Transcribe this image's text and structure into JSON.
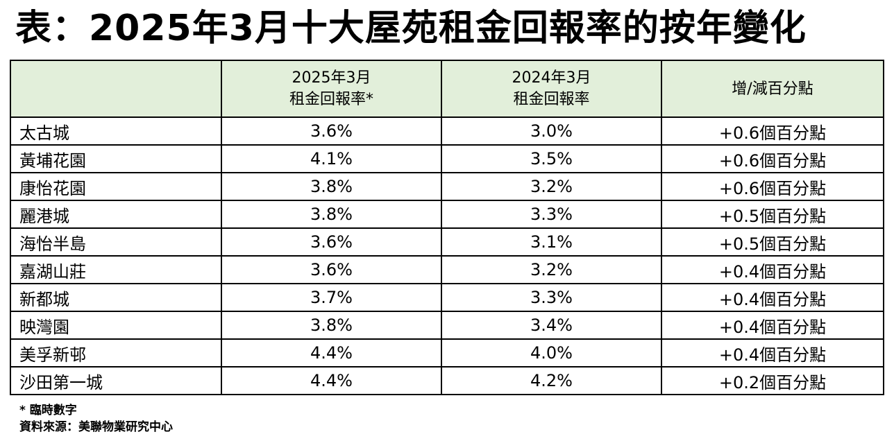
{
  "title": "表：2025年3月十大屋苑租金回報率的按年變化",
  "table": {
    "headers": [
      {
        "line1": "",
        "line2": ""
      },
      {
        "line1": "2025年3月",
        "line2": "租金回報率*"
      },
      {
        "line1": "2024年3月",
        "line2": "租金回報率"
      },
      {
        "line1": "增/減百分點",
        "line2": ""
      }
    ],
    "rows": [
      {
        "estate": "太古城",
        "yield_2025": "3.6%",
        "yield_2024": "3.0%",
        "change": "+0.6個百分點"
      },
      {
        "estate": "黃埔花園",
        "yield_2025": "4.1%",
        "yield_2024": "3.5%",
        "change": "+0.6個百分點"
      },
      {
        "estate": "康怡花園",
        "yield_2025": "3.8%",
        "yield_2024": "3.2%",
        "change": "+0.6個百分點"
      },
      {
        "estate": "麗港城",
        "yield_2025": "3.8%",
        "yield_2024": "3.3%",
        "change": "+0.5個百分點"
      },
      {
        "estate": "海怡半島",
        "yield_2025": "3.6%",
        "yield_2024": "3.1%",
        "change": "+0.5個百分點"
      },
      {
        "estate": "嘉湖山莊",
        "yield_2025": "3.6%",
        "yield_2024": "3.2%",
        "change": "+0.4個百分點"
      },
      {
        "estate": "新都城",
        "yield_2025": "3.7%",
        "yield_2024": "3.3%",
        "change": "+0.4個百分點"
      },
      {
        "estate": "映灣園",
        "yield_2025": "3.8%",
        "yield_2024": "3.4%",
        "change": "+0.4個百分點"
      },
      {
        "estate": "美孚新邨",
        "yield_2025": "4.4%",
        "yield_2024": "4.0%",
        "change": "+0.4個百分點"
      },
      {
        "estate": "沙田第一城",
        "yield_2025": "4.4%",
        "yield_2024": "4.2%",
        "change": "+0.2個百分點"
      }
    ]
  },
  "notes": {
    "provisional": "* 臨時數字",
    "source": "資料來源：美聯物業研究中心"
  },
  "colors": {
    "header_background": "#e2efda",
    "border": "#000000",
    "text": "#000000"
  }
}
